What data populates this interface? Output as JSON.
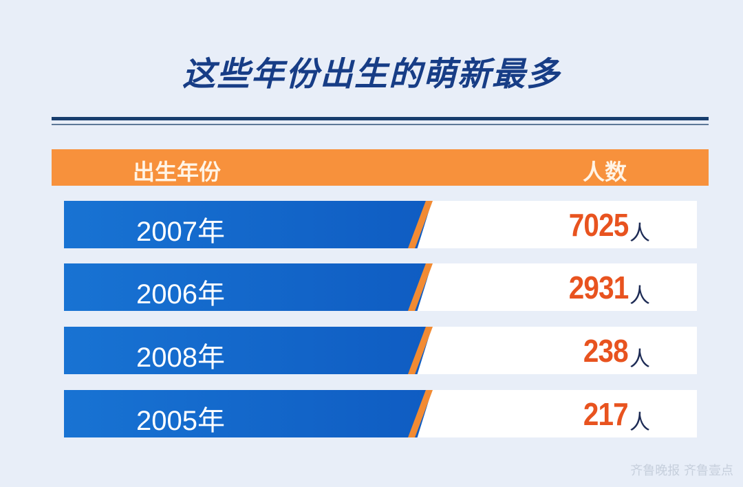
{
  "title": "这些年份出生的萌新最多",
  "colors": {
    "title": "#173d86",
    "header": "#f7913c",
    "row_blue": "#1873d3",
    "value": "#e8531f",
    "background": "#e8eef8"
  },
  "chart_data": {
    "type": "table",
    "columns": [
      "出生年份",
      "人数"
    ],
    "rows": [
      {
        "year": "2007年",
        "count": "7025",
        "unit": "人"
      },
      {
        "year": "2006年",
        "count": "2931",
        "unit": "人"
      },
      {
        "year": "2008年",
        "count": "238",
        "unit": "人"
      },
      {
        "year": "2005年",
        "count": "217",
        "unit": "人"
      }
    ]
  },
  "watermark": "齐鲁晚报 齐鲁壹点"
}
